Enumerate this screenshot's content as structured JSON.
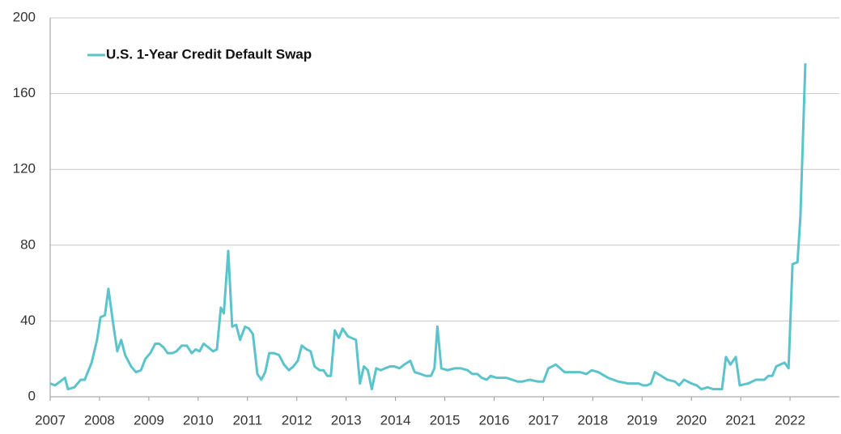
{
  "chart_data": {
    "type": "line",
    "series": [
      {
        "name": "U.S. 1-Year Credit Default Swap",
        "color": "#5bc4cb",
        "x": [
          2007.0,
          2007.1,
          2007.3,
          2007.36,
          2007.49,
          2007.62,
          2007.7,
          2007.84,
          2007.95,
          2008.02,
          2008.11,
          2008.18,
          2008.28,
          2008.36,
          2008.44,
          2008.52,
          2008.64,
          2008.74,
          2008.84,
          2008.93,
          2009.03,
          2009.13,
          2009.21,
          2009.3,
          2009.38,
          2009.48,
          2009.56,
          2009.67,
          2009.77,
          2009.87,
          2009.95,
          2010.03,
          2010.11,
          2010.21,
          2010.3,
          2010.38,
          2010.46,
          2010.52,
          2010.61,
          2010.69,
          2010.77,
          2010.85,
          2010.95,
          2011.03,
          2011.11,
          2011.2,
          2011.28,
          2011.36,
          2011.44,
          2011.54,
          2011.64,
          2011.74,
          2011.84,
          2011.93,
          2012.02,
          2012.1,
          2012.2,
          2012.28,
          2012.36,
          2012.46,
          2012.54,
          2012.62,
          2012.69,
          2012.77,
          2012.85,
          2012.93,
          2013.03,
          2013.11,
          2013.2,
          2013.28,
          2013.36,
          2013.44,
          2013.52,
          2013.61,
          2013.7,
          2013.79,
          2013.89,
          2013.98,
          2014.08,
          2014.18,
          2014.3,
          2014.39,
          2014.51,
          2014.62,
          2014.72,
          2014.79,
          2014.85,
          2014.93,
          2015.05,
          2015.2,
          2015.33,
          2015.46,
          2015.56,
          2015.66,
          2015.75,
          2015.85,
          2015.93,
          2016.05,
          2016.25,
          2016.48,
          2016.57,
          2016.72,
          2016.89,
          2017.0,
          2017.1,
          2017.25,
          2017.43,
          2017.62,
          2017.74,
          2017.87,
          2017.98,
          2018.11,
          2018.31,
          2018.52,
          2018.72,
          2018.85,
          2018.93,
          2019.02,
          2019.1,
          2019.18,
          2019.26,
          2019.39,
          2019.51,
          2019.67,
          2019.75,
          2019.85,
          2020.0,
          2020.11,
          2020.2,
          2020.33,
          2020.44,
          2020.62,
          2020.7,
          2020.79,
          2020.9,
          2020.98,
          2021.15,
          2021.31,
          2021.48,
          2021.56,
          2021.64,
          2021.72,
          2021.8,
          2021.89,
          2021.97,
          2022.05,
          2022.15,
          2022.21,
          2022.31
        ],
        "values": [
          7,
          6,
          10,
          4,
          5,
          9,
          9,
          18,
          30,
          42,
          43,
          57,
          38,
          24,
          30,
          22,
          16,
          13,
          14,
          20,
          23,
          28,
          28,
          26,
          23,
          23,
          24,
          27,
          27,
          23,
          25,
          24,
          28,
          26,
          24,
          25,
          47,
          44,
          77,
          37,
          38,
          30,
          37,
          36,
          33,
          12,
          9,
          13,
          23,
          23,
          22,
          17,
          14,
          16,
          19,
          27,
          25,
          24,
          16,
          14,
          14,
          11,
          11,
          35,
          31,
          36,
          32,
          31,
          30,
          7,
          16,
          14,
          4,
          15,
          14,
          15,
          16,
          16,
          15,
          17,
          19,
          13,
          12,
          11,
          11,
          15,
          37,
          15,
          14,
          15,
          15,
          14,
          12,
          12,
          10,
          9,
          11,
          10,
          10,
          8,
          8,
          9,
          8,
          8,
          15,
          17,
          13,
          13,
          13,
          12,
          14,
          13,
          10,
          8,
          7,
          7,
          7,
          6,
          6,
          7,
          13,
          11,
          9,
          8,
          6,
          9,
          7,
          6,
          4,
          5,
          4,
          4,
          21,
          17,
          21,
          6,
          7,
          9,
          9,
          11,
          11,
          16,
          17,
          18,
          15,
          70,
          71,
          95,
          176
        ]
      }
    ],
    "xlim": [
      2007,
      2023
    ],
    "xticks": [
      2007,
      2008,
      2009,
      2010,
      2011,
      2012,
      2013,
      2014,
      2015,
      2016,
      2017,
      2018,
      2019,
      2020,
      2021,
      2022
    ],
    "ylim": [
      0,
      200
    ],
    "yticks": [
      0,
      40,
      80,
      120,
      160,
      200
    ],
    "grid": true,
    "legend": "upper left"
  }
}
